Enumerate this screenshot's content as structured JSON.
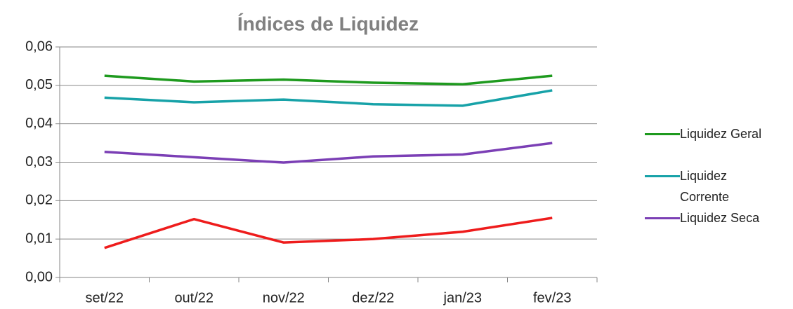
{
  "chart_data": {
    "type": "line",
    "title": "Índices de Liquidez",
    "categories": [
      "set/22",
      "out/22",
      "nov/22",
      "dez/22",
      "jan/23",
      "fev/23"
    ],
    "series": [
      {
        "name": "Liquidez Geral",
        "color": "#1e9a1e",
        "values": [
          0.0525,
          0.051,
          0.0515,
          0.0507,
          0.0503,
          0.0525
        ]
      },
      {
        "name": "Liquidez Corrente",
        "color": "#17a2a8",
        "values": [
          0.0468,
          0.0456,
          0.0463,
          0.0451,
          0.0447,
          0.0487
        ]
      },
      {
        "name": "Liquidez Seca",
        "color": "#7b3fb5",
        "values": [
          0.0327,
          0.0313,
          0.0299,
          0.0315,
          0.032,
          0.035
        ]
      },
      {
        "color": "#ee1c1c",
        "values": [
          0.0077,
          0.0152,
          0.0091,
          0.01,
          0.0119,
          0.0155
        ]
      }
    ],
    "ylim": [
      0,
      0.06
    ],
    "yticks": [
      {
        "value": 0,
        "label": "0,00"
      },
      {
        "value": 0.01,
        "label": "0,01"
      },
      {
        "value": 0.02,
        "label": "0,02"
      },
      {
        "value": 0.03,
        "label": "0,03"
      },
      {
        "value": 0.04,
        "label": "0,04"
      },
      {
        "value": 0.05,
        "label": "0,05"
      },
      {
        "value": 0.06,
        "label": "0,06"
      }
    ],
    "grid": true,
    "legend": "right"
  }
}
